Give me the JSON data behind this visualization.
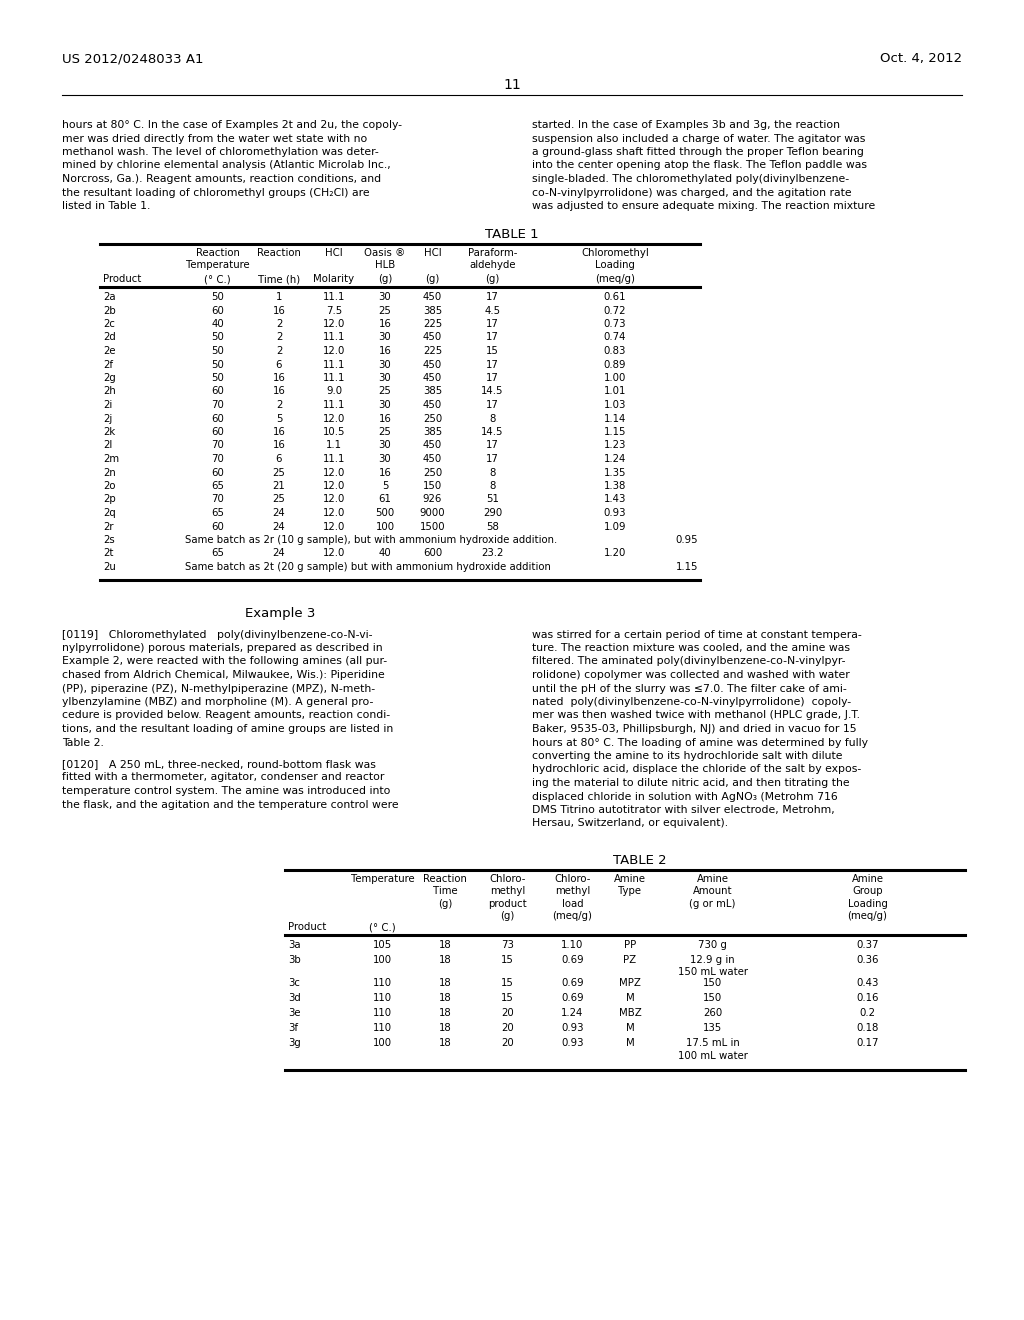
{
  "page_number": "11",
  "patent_number": "US 2012/0248033 A1",
  "patent_date": "Oct. 4, 2012",
  "background_color": "#ffffff",
  "left_col_text": [
    "hours at 80° C. In the case of Examples 2t and 2u, the copoly-",
    "mer was dried directly from the water wet state with no",
    "methanol wash. The level of chloromethylation was deter-",
    "mined by chlorine elemental analysis (Atlantic Microlab Inc.,",
    "Norcross, Ga.). Reagent amounts, reaction conditions, and",
    "the resultant loading of chloromethyl groups (CH₂Cl) are",
    "listed in Table 1."
  ],
  "right_col_text": [
    "started. In the case of Examples 3b and 3g, the reaction",
    "suspension also included a charge of water. The agitator was",
    "a ground-glass shaft fitted through the proper Teflon bearing",
    "into the center opening atop the flask. The Teflon paddle was",
    "single-bladed. The chloromethylated poly(divinylbenzene-",
    "co-N-vinylpyrrolidone) was charged, and the agitation rate",
    "was adjusted to ensure adequate mixing. The reaction mixture"
  ],
  "table1_title": "TABLE 1",
  "table1_data": [
    [
      "2a",
      "50",
      "1",
      "11.1",
      "30",
      "450",
      "17",
      "0.61"
    ],
    [
      "2b",
      "60",
      "16",
      "7.5",
      "25",
      "385",
      "4.5",
      "0.72"
    ],
    [
      "2c",
      "40",
      "2",
      "12.0",
      "16",
      "225",
      "17",
      "0.73"
    ],
    [
      "2d",
      "50",
      "2",
      "11.1",
      "30",
      "450",
      "17",
      "0.74"
    ],
    [
      "2e",
      "50",
      "2",
      "12.0",
      "16",
      "225",
      "15",
      "0.83"
    ],
    [
      "2f",
      "50",
      "6",
      "11.1",
      "30",
      "450",
      "17",
      "0.89"
    ],
    [
      "2g",
      "50",
      "16",
      "11.1",
      "30",
      "450",
      "17",
      "1.00"
    ],
    [
      "2h",
      "60",
      "16",
      "9.0",
      "25",
      "385",
      "14.5",
      "1.01"
    ],
    [
      "2i",
      "70",
      "2",
      "11.1",
      "30",
      "450",
      "17",
      "1.03"
    ],
    [
      "2j",
      "60",
      "5",
      "12.0",
      "16",
      "250",
      "8",
      "1.14"
    ],
    [
      "2k",
      "60",
      "16",
      "10.5",
      "25",
      "385",
      "14.5",
      "1.15"
    ],
    [
      "2l",
      "70",
      "16",
      "1.1",
      "30",
      "450",
      "17",
      "1.23"
    ],
    [
      "2m",
      "70",
      "6",
      "11.1",
      "30",
      "450",
      "17",
      "1.24"
    ],
    [
      "2n",
      "60",
      "25",
      "12.0",
      "16",
      "250",
      "8",
      "1.35"
    ],
    [
      "2o",
      "65",
      "21",
      "12.0",
      "5",
      "150",
      "8",
      "1.38"
    ],
    [
      "2p",
      "70",
      "25",
      "12.0",
      "61",
      "926",
      "51",
      "1.43"
    ],
    [
      "2q",
      "65",
      "24",
      "12.0",
      "500",
      "9000",
      "290",
      "0.93"
    ],
    [
      "2r",
      "60",
      "24",
      "12.0",
      "100",
      "1500",
      "58",
      "1.09"
    ],
    [
      "2s",
      "Same batch as 2r (10 g sample), but with ammonium hydroxide addition.",
      "",
      "",
      "",
      "",
      "",
      "0.95"
    ],
    [
      "2t",
      "65",
      "24",
      "12.0",
      "40",
      "600",
      "23.2",
      "1.20"
    ],
    [
      "2u",
      "Same batch as 2t (20 g sample) but with ammonium hydroxide addition",
      "",
      "",
      "",
      "",
      "",
      "1.15"
    ]
  ],
  "example3_heading": "Example 3",
  "left_col_text2": [
    "[0119]   Chloromethylated   poly(divinylbenzene-co-N-vi-",
    "nylpyrrolidone) porous materials, prepared as described in",
    "Example 2, were reacted with the following amines (all pur-",
    "chased from Aldrich Chemical, Milwaukee, Wis.): Piperidine",
    "(PP), piperazine (PZ), N-methylpiperazine (MPZ), N-meth-",
    "ylbenzylamine (MBZ) and morpholine (M). A general pro-",
    "cedure is provided below. Reagent amounts, reaction condi-",
    "tions, and the resultant loading of amine groups are listed in",
    "Table 2."
  ],
  "left_col_text3": [
    "[0120]   A 250 mL, three-necked, round-bottom flask was",
    "fitted with a thermometer, agitator, condenser and reactor",
    "temperature control system. The amine was introduced into",
    "the flask, and the agitation and the temperature control were"
  ],
  "right_col_text2": [
    "was stirred for a certain period of time at constant tempera-",
    "ture. The reaction mixture was cooled, and the amine was",
    "filtered. The aminated poly(divinylbenzene-co-N-vinylpyr-",
    "rolidone) copolymer was collected and washed with water",
    "until the pH of the slurry was ≤7.0. The filter cake of ami-",
    "nated  poly(divinylbenzene-co-N-vinylpyrrolidone)  copoly-",
    "mer was then washed twice with methanol (HPLC grade, J.T.",
    "Baker, 9535-03, Phillipsburgh, NJ) and dried in vacuo for 15",
    "hours at 80° C. The loading of amine was determined by fully",
    "converting the amine to its hydrochloride salt with dilute",
    "hydrochloric acid, displace the chloride of the salt by expos-",
    "ing the material to dilute nitric acid, and then titrating the",
    "displaced chloride in solution with AgNO₃ (Metrohm 716"
  ],
  "right_col_text2b": [
    "DMS Titrino autotitrator with silver electrode, Metrohm,",
    "Hersau, Switzerland, or equivalent)."
  ],
  "table2_title": "TABLE 2",
  "table2_data": [
    [
      "3a",
      "105",
      "18",
      "73",
      "1.10",
      "PP",
      "730 g",
      "0.37"
    ],
    [
      "3b",
      "100",
      "18",
      "15",
      "0.69",
      "PZ",
      "12.9 g in\n150 mL water",
      "0.36"
    ],
    [
      "3c",
      "110",
      "18",
      "15",
      "0.69",
      "MPZ",
      "150",
      "0.43"
    ],
    [
      "3d",
      "110",
      "18",
      "15",
      "0.69",
      "M",
      "150",
      "0.16"
    ],
    [
      "3e",
      "110",
      "18",
      "20",
      "1.24",
      "MBZ",
      "260",
      "0.2"
    ],
    [
      "3f",
      "110",
      "18",
      "20",
      "0.93",
      "M",
      "135",
      "0.18"
    ],
    [
      "3g",
      "100",
      "18",
      "20",
      "0.93",
      "M",
      "17.5 mL in\n100 mL water",
      "0.17"
    ]
  ]
}
